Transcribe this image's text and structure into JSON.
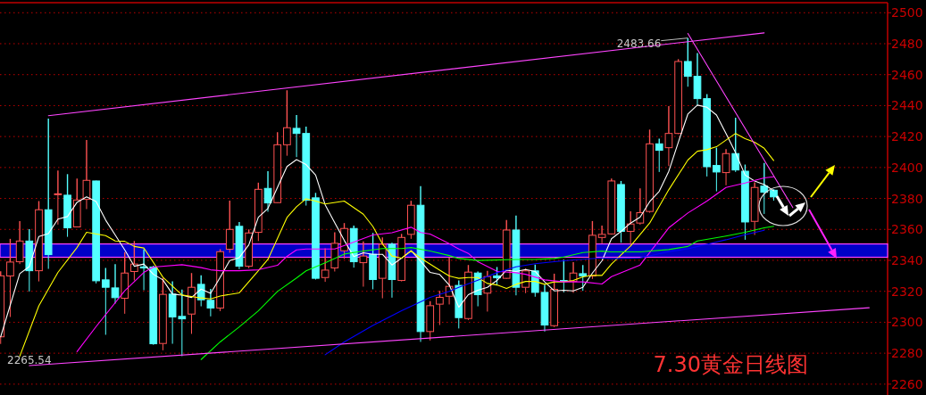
{
  "chart_data": {
    "type": "candlestick",
    "title": "7.30黄金日线图",
    "categories": [
      null,
      null,
      null,
      null,
      null,
      null,
      null,
      null,
      null,
      null,
      null,
      null,
      null,
      null,
      null,
      null,
      null,
      null,
      null,
      null,
      null,
      null,
      null,
      null,
      null,
      null,
      null,
      null,
      null,
      null,
      null,
      null,
      null,
      null,
      null,
      null,
      null,
      null,
      null,
      null,
      null,
      null,
      null,
      null,
      null,
      null,
      null,
      null,
      null,
      null,
      null,
      null,
      null,
      null,
      null,
      null,
      null,
      null,
      null,
      null,
      null,
      null,
      null,
      null,
      null,
      null,
      null,
      null,
      null,
      null,
      null,
      null,
      null,
      null,
      null,
      null,
      null,
      null,
      null,
      null,
      null,
      null,
      null,
      null,
      null,
      null,
      null,
      null,
      null,
      null,
      null,
      null,
      null
    ],
    "ohlc": [
      [
        2290.6,
        2333,
        2286,
        2330
      ],
      [
        2329.9,
        2353.9,
        2303.4,
        2338.9
      ],
      [
        2339.1,
        2365.4,
        2337.6,
        2352.5
      ],
      [
        2352.5,
        2360.2,
        2319.9,
        2333.3
      ],
      [
        2333.3,
        2378.3,
        2326.4,
        2372.7
      ],
      [
        2372.7,
        2431.6,
        2334.5,
        2343.7
      ],
      [
        2382.5,
        2398,
        2363.1,
        2383
      ],
      [
        2382.1,
        2395.7,
        2355.2,
        2361
      ],
      [
        2361.6,
        2392.9,
        2361.4,
        2379
      ],
      [
        2379.4,
        2417.8,
        2373.1,
        2391.7
      ],
      [
        2391.3,
        2391.5,
        2325.1,
        2326.8
      ],
      [
        2327.4,
        2335.1,
        2291.9,
        2322.6
      ],
      [
        2322.2,
        2337.6,
        2312,
        2315.9
      ],
      [
        2315.5,
        2345.3,
        2305.5,
        2331.8
      ],
      [
        2332.8,
        2352.5,
        2327,
        2337.6
      ],
      [
        2335.8,
        2347.2,
        2320.7,
        2335.1
      ],
      [
        2335.7,
        2336.6,
        2285.4,
        2286.1
      ],
      [
        2286.3,
        2328.7,
        2281.9,
        2318
      ],
      [
        2318.2,
        2326.4,
        2286.1,
        2303.4
      ],
      [
        2303.8,
        2321.1,
        2278.1,
        2302.2
      ],
      [
        2305.3,
        2331.8,
        2292.5,
        2322.6
      ],
      [
        2324.5,
        2330.3,
        2310.3,
        2314.5
      ],
      [
        2314.2,
        2321.5,
        2303.8,
        2309.2
      ],
      [
        2309.2,
        2347.2,
        2307.2,
        2345.6
      ],
      [
        2347.2,
        2378.6,
        2344.9,
        2360
      ],
      [
        2362,
        2364.8,
        2334.3,
        2336.2
      ],
      [
        2336.2,
        2360,
        2334.9,
        2357.7
      ],
      [
        2358.1,
        2390.2,
        2352.5,
        2385.9
      ],
      [
        2386.5,
        2397.6,
        2371.4,
        2377.1
      ],
      [
        2377.3,
        2422.8,
        2377.1,
        2414.7
      ],
      [
        2414.7,
        2449.9,
        2407.6,
        2425.7
      ],
      [
        2425.3,
        2433.9,
        2406.7,
        2422
      ],
      [
        2422,
        2426.4,
        2375.4,
        2378.8
      ],
      [
        2380.4,
        2383.6,
        2327.6,
        2328.4
      ],
      [
        2328.9,
        2347.8,
        2326.1,
        2333.7
      ],
      [
        2335.1,
        2358.1,
        2332.8,
        2351
      ],
      [
        2346.2,
        2364.1,
        2341,
        2360.6
      ],
      [
        2360.6,
        2362.5,
        2335.3,
        2339.1
      ],
      [
        2338.5,
        2352.3,
        2323,
        2342.8
      ],
      [
        2343.9,
        2357.7,
        2321.3,
        2327.6
      ],
      [
        2328.4,
        2354.8,
        2315.5,
        2350.4
      ],
      [
        2350.4,
        2351.4,
        2315.9,
        2327.6
      ],
      [
        2327,
        2357.1,
        2326.4,
        2354.8
      ],
      [
        2356.8,
        2378.5,
        2353.9,
        2375.6
      ],
      [
        2375.6,
        2387.9,
        2287.3,
        2294
      ],
      [
        2294,
        2313.6,
        2288.2,
        2310.7
      ],
      [
        2311.7,
        2320.3,
        2298.2,
        2316.1
      ],
      [
        2316.8,
        2341.8,
        2311.5,
        2323.2
      ],
      [
        2323.8,
        2327,
        2296,
        2303
      ],
      [
        2302.4,
        2337,
        2301.5,
        2332.4
      ],
      [
        2331.8,
        2332.8,
        2310.3,
        2317.8
      ],
      [
        2318.8,
        2333.2,
        2306.9,
        2329.5
      ],
      [
        2330,
        2335.7,
        2323.8,
        2328.7
      ],
      [
        2328.4,
        2366,
        2328,
        2359.6
      ],
      [
        2359.6,
        2368.9,
        2317.4,
        2322.6
      ],
      [
        2322.6,
        2334.7,
        2318.8,
        2333.2
      ],
      [
        2333.2,
        2337.2,
        2316.5,
        2319.3
      ],
      [
        2319.3,
        2324.1,
        2294,
        2298.2
      ],
      [
        2297.8,
        2331.4,
        2296.9,
        2321.3
      ],
      [
        2327,
        2340.4,
        2319.3,
        2326.4
      ],
      [
        2326.4,
        2338.9,
        2319,
        2331.8
      ],
      [
        2331.4,
        2337,
        2320.3,
        2329.9
      ],
      [
        2329.9,
        2365.4,
        2328,
        2356.2
      ],
      [
        2354.8,
        2362.5,
        2351,
        2356.8
      ],
      [
        2357.1,
        2392.9,
        2356.6,
        2391.3
      ],
      [
        2389,
        2391.3,
        2351.4,
        2358.7
      ],
      [
        2358.7,
        2371.7,
        2350,
        2363.5
      ],
      [
        2364.1,
        2386.5,
        2363,
        2370.8
      ],
      [
        2371.6,
        2424.5,
        2370.8,
        2415.3
      ],
      [
        2415.3,
        2418.6,
        2397.1,
        2411.1
      ],
      [
        2412.8,
        2439.7,
        2400.9,
        2422
      ],
      [
        2422,
        2470,
        2421.6,
        2468.5
      ],
      [
        2468.5,
        2483.66,
        2452.2,
        2458.9
      ],
      [
        2458.9,
        2473.9,
        2440.3,
        2444.5
      ],
      [
        2444.5,
        2447.4,
        2394.2,
        2400.5
      ],
      [
        2401.3,
        2412.8,
        2384.6,
        2397.1
      ],
      [
        2396.7,
        2411.9,
        2388.5,
        2409
      ],
      [
        2409,
        2432.2,
        2397.1,
        2398.4
      ],
      [
        2397.6,
        2401.9,
        2353.3,
        2364.8
      ],
      [
        2365.2,
        2390.4,
        2356.4,
        2387.1
      ],
      [
        2388,
        2403,
        2370,
        2384
      ],
      [
        2385.3,
        2386,
        2378.6,
        2381
      ],
      null,
      null,
      null,
      null,
      null,
      null,
      null,
      null,
      null,
      null,
      null
    ],
    "series": [
      {
        "type": "line",
        "color": "#ffffff",
        "values": [
          2290.6,
          null,
          2331.4,
          2336,
          2355.4,
          2357.3,
          2366.6,
          2368.3,
          2377.5,
          2381,
          2378,
          2366,
          2356.4,
          2346.8,
          2336.2,
          2337.6,
          2331,
          2327.4,
          2318.2,
          2317.5,
          2316,
          2321.4,
          2318.7,
          2329.1,
          2339.9,
          2341.8,
          2350,
          2367.9,
          2373.5,
          2387.1,
          2400.6,
          2405.1,
          2401.9,
          2395.1,
          2375.9,
          2364.4,
          2352.9,
          2342.4,
          2344.9,
          2343.9,
          2343.9,
          2337,
          2341.4,
          2346.2,
          2339.5,
          2332.2,
          2330.9,
          2324.1,
          2309.7,
          2317.8,
          2320.7,
          2322.6,
          2327,
          2333.7,
          2332.8,
          2334.1,
          2332.8,
          2326.1,
          2320.3,
          2320.7,
          2320.3,
          2322.6,
          2331.8,
          2339.7,
          2354,
          2358.7,
          2364.1,
          2367.9,
          2377.9,
          2384.6,
          2397.5,
          2416.3,
          2434.5,
          2440.3,
          2438.9,
          2433.9,
          2422,
          2409.5,
          2395.1,
          2391.3,
          2389,
          2385,
          null,
          null,
          null,
          null,
          null,
          null,
          null,
          null,
          null,
          null,
          null
        ]
      },
      {
        "type": "line",
        "color": "#ffff00",
        "values": [
          null,
          null,
          2278,
          null,
          2310.6,
          null,
          2332.2,
          null,
          2348.3,
          2358.1,
          null,
          2356,
          2352.5,
          2352.3,
          2349,
          2348,
          2338.7,
          2329.1,
          null,
          2317.6,
          null,
          2315.7,
          2315.1,
          2317,
          null,
          2319,
          null,
          2333.3,
          2340.6,
          null,
          2367.7,
          2374.6,
          2379.8,
          2378.3,
          2376.4,
          null,
          2378.3,
          null,
          2369.8,
          2361.9,
          2350.6,
          2342.8,
          2341.4,
          2346.2,
          2341.4,
          2337.6,
          2333.7,
          2329.9,
          2328.4,
          2328.9,
          2328.9,
          2325.1,
          2324.1,
          2321.9,
          2324.5,
          2326.4,
          2326.4,
          2324.5,
          2326.1,
          2326.1,
          2327,
          2329.3,
          2330.3,
          2330.3,
          2337.6,
          2343.5,
          2349.3,
          null,
          2364.1,
          null,
          2385.6,
          null,
          2404.8,
          2410.5,
          2411.5,
          2413.4,
          null,
          2422,
          2418.6,
          2416.3,
          2412.4,
          2404.5,
          null,
          null,
          null,
          null,
          null,
          null,
          null,
          null,
          null,
          null,
          null
        ]
      },
      {
        "type": "line",
        "color": "#ff00ff",
        "values": [
          null,
          null,
          null,
          null,
          null,
          null,
          null,
          null,
          2281,
          null,
          2297.2,
          null,
          null,
          2320.3,
          null,
          2332.2,
          2335.7,
          null,
          null,
          2337.2,
          null,
          2335.3,
          2333.9,
          2333.3,
          null,
          2333.3,
          null,
          2333.9,
          null,
          2336.8,
          2342.6,
          2346.8,
          2347.3,
          2347.3,
          null,
          2347.3,
          null,
          2351.8,
          null,
          2356.4,
          null,
          2357.9,
          null,
          2361.4,
          2358,
          2357,
          null,
          2350.8,
          2347.3,
          2344.5,
          2339.1,
          null,
          2332.9,
          null,
          2332,
          2331,
          null,
          2327.4,
          null,
          2326.1,
          null,
          2326.1,
          null,
          2324.7,
          2329.5,
          null,
          null,
          2337,
          null,
          null,
          2361,
          null,
          2370.6,
          null,
          2378.3,
          null,
          2387.1,
          null,
          2390,
          null,
          2393.3,
          2394,
          null,
          null,
          null,
          null,
          null,
          null,
          null,
          null,
          null,
          null,
          null
        ]
      },
      {
        "type": "line",
        "color": "#00ff00",
        "values": [
          null,
          null,
          null,
          null,
          null,
          null,
          null,
          null,
          null,
          null,
          null,
          null,
          null,
          null,
          null,
          null,
          null,
          null,
          null,
          null,
          null,
          2275.9,
          null,
          2287.3,
          null,
          2297,
          null,
          2307.4,
          null,
          2319.9,
          null,
          2328.6,
          2333.2,
          null,
          2338.4,
          null,
          2344.1,
          null,
          2346,
          null,
          2347.6,
          null,
          2347.6,
          2348.3,
          null,
          2346,
          null,
          2343.1,
          2341.2,
          null,
          2339.9,
          null,
          null,
          null,
          2340.6,
          null,
          2340.6,
          null,
          2341.2,
          2342.2,
          null,
          2345,
          null,
          2346,
          2345.5,
          null,
          null,
          2345.5,
          null,
          null,
          2347,
          null,
          2349,
          2352.5,
          null,
          null,
          2355.7,
          null,
          2358.1,
          null,
          2361,
          2362,
          null,
          null,
          null,
          null,
          null,
          null,
          null,
          null,
          null,
          null,
          null
        ]
      },
      {
        "type": "line",
        "color": "#0000ff",
        "values": [
          null,
          null,
          null,
          null,
          null,
          null,
          null,
          null,
          null,
          null,
          null,
          null,
          null,
          null,
          null,
          null,
          null,
          null,
          null,
          null,
          null,
          null,
          null,
          null,
          null,
          null,
          null,
          null,
          null,
          null,
          null,
          null,
          null,
          null,
          2279,
          null,
          2287.3,
          null,
          null,
          2297.9,
          null,
          null,
          2307.4,
          null,
          null,
          2316.1,
          null,
          2320,
          2322.6,
          null,
          2327.2,
          null,
          2332,
          null,
          2335.8,
          null,
          2337.8,
          null,
          2339.1,
          null,
          2340.3,
          null,
          null,
          2341.6,
          2341.1,
          null,
          null,
          2341.6,
          null,
          null,
          2345.6,
          null,
          2347.5,
          null,
          2350.4,
          null,
          2353.3,
          null,
          2356.6,
          null,
          2359.4,
          null,
          null,
          null,
          null,
          null,
          null,
          null,
          null,
          null,
          null,
          null,
          null
        ]
      },
      {
        "type": "line",
        "color": "#ff44ff",
        "values": [
          null,
          null,
          null,
          null,
          null,
          2433.5,
          null,
          null,
          null,
          null,
          null,
          null,
          null,
          null,
          null,
          null,
          null,
          null,
          null,
          null,
          null,
          null,
          null,
          null,
          null,
          null,
          null,
          null,
          null,
          null,
          null,
          null,
          null,
          null,
          null,
          null,
          null,
          null,
          null,
          null,
          null,
          null,
          null,
          null,
          null,
          null,
          null,
          null,
          null,
          null,
          null,
          null,
          null,
          null,
          null,
          null,
          null,
          null,
          null,
          null,
          null,
          null,
          null,
          null,
          null,
          null,
          null,
          null,
          null,
          null,
          null,
          null,
          null,
          null,
          null,
          null,
          null,
          null,
          null,
          null,
          2487.0,
          null,
          null,
          null,
          null,
          null,
          null,
          null,
          null,
          null,
          null,
          null,
          null
        ]
      },
      {
        "type": "line",
        "color": "#ff44ff",
        "values": [
          null,
          null,
          null,
          2272,
          null,
          null,
          null,
          null,
          null,
          null,
          null,
          null,
          null,
          null,
          null,
          null,
          null,
          null,
          null,
          null,
          null,
          null,
          null,
          null,
          null,
          null,
          null,
          null,
          null,
          null,
          null,
          null,
          null,
          null,
          null,
          null,
          null,
          null,
          null,
          null,
          null,
          null,
          null,
          null,
          null,
          null,
          null,
          null,
          null,
          null,
          null,
          null,
          null,
          null,
          null,
          null,
          null,
          null,
          null,
          null,
          null,
          null,
          null,
          null,
          null,
          null,
          null,
          null,
          null,
          null,
          null,
          null,
          null,
          null,
          null,
          null,
          null,
          null,
          null,
          null,
          null,
          null,
          null,
          null,
          null,
          null,
          null,
          null,
          null,
          null,
          null,
          2309.4,
          null
        ]
      },
      {
        "type": "line",
        "color": "#ff44ff",
        "values": [
          null,
          null,
          null,
          null,
          null,
          null,
          null,
          null,
          null,
          null,
          null,
          null,
          null,
          null,
          null,
          null,
          null,
          null,
          null,
          null,
          null,
          null,
          null,
          null,
          null,
          null,
          null,
          null,
          null,
          null,
          null,
          null,
          null,
          null,
          null,
          null,
          null,
          null,
          null,
          null,
          null,
          null,
          null,
          null,
          null,
          null,
          null,
          null,
          null,
          null,
          null,
          null,
          null,
          null,
          null,
          null,
          null,
          null,
          null,
          null,
          null,
          null,
          null,
          null,
          null,
          null,
          null,
          null,
          null,
          null,
          null,
          null,
          2486.6,
          null,
          null,
          null,
          null,
          null,
          null,
          null,
          null,
          null,
          null,
          2374.1,
          null,
          null,
          null,
          null,
          null,
          null,
          null,
          null,
          null
        ]
      }
    ],
    "bands": [
      {
        "axis": "y",
        "from": 2342,
        "to": 2350.6,
        "color": "#0000c8"
      }
    ],
    "annotations": [
      "2483.66",
      "2265.54"
    ],
    "ylim": [
      2253,
      2506.5
    ],
    "yticks": [
      2260,
      2280,
      2300,
      2320,
      2340,
      2360,
      2380,
      2400,
      2420,
      2440,
      2460,
      2480,
      2500
    ],
    "grid": "y"
  }
}
